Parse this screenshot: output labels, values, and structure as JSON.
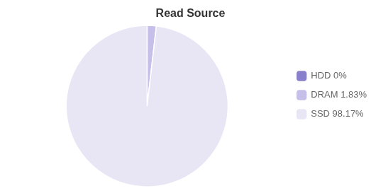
{
  "chart_data": {
    "type": "pie",
    "title": "Read Source",
    "categories": [
      "HDD 0%",
      "DRAM 1.83%",
      "SSD 98.17%"
    ],
    "values": [
      0.0001,
      1.83,
      98.1699
    ],
    "colors": [
      "#8880cc",
      "#c5bfea",
      "#e8e6f5"
    ],
    "legend": "right"
  }
}
